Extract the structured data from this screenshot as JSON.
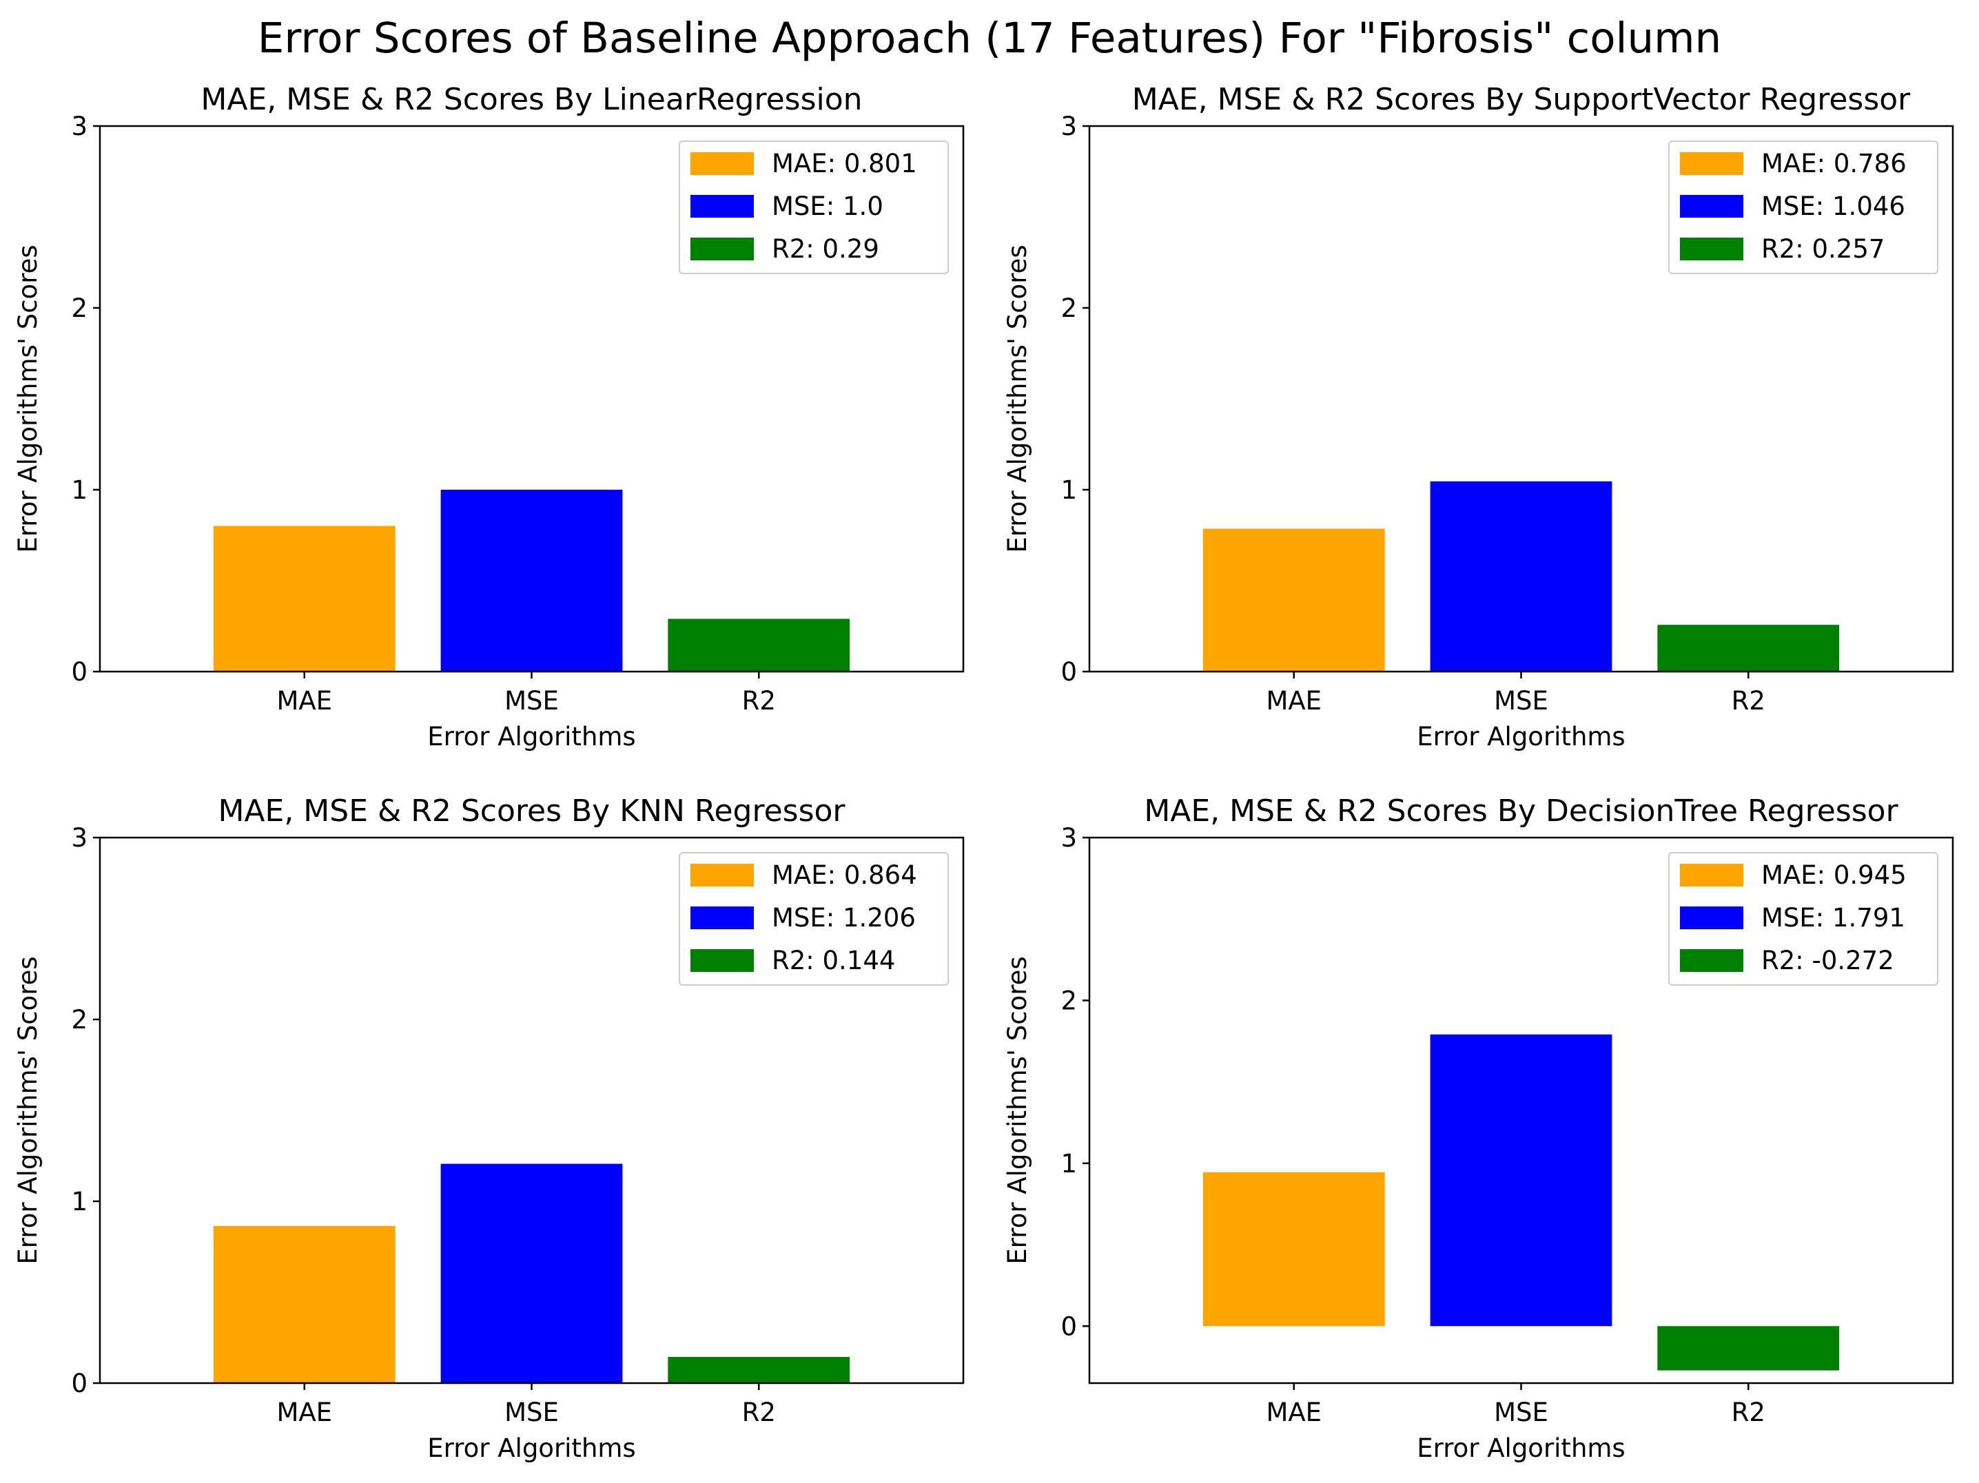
{
  "figure": {
    "suptitle": "Error Scores of Baseline Approach (17 Features) For \"Fibrosis\" column"
  },
  "colors": {
    "MAE": "#ffa500",
    "MSE": "#0000ff",
    "R2": "#008000",
    "legend_edge": "#cccccc",
    "axes_edge": "#000000"
  },
  "chart_data": [
    {
      "type": "bar",
      "title": "MAE, MSE & R2 Scores By LinearRegression",
      "xlabel": "Error Algorithms",
      "ylabel": "Error Algorithms' Scores",
      "categories": [
        "MAE",
        "MSE",
        "R2"
      ],
      "values": [
        0.801,
        1.0,
        0.29
      ],
      "ylim": [
        0,
        3
      ],
      "yticks": [
        0,
        1,
        2,
        3
      ],
      "legend": [
        "MAE: 0.801",
        "MSE: 1.0",
        "R2: 0.29"
      ],
      "legend_position": "top-right",
      "grid": false
    },
    {
      "type": "bar",
      "title": "MAE, MSE & R2 Scores By SupportVector Regressor",
      "xlabel": "Error Algorithms",
      "ylabel": "Error Algorithms' Scores",
      "categories": [
        "MAE",
        "MSE",
        "R2"
      ],
      "values": [
        0.786,
        1.046,
        0.257
      ],
      "ylim": [
        0,
        3
      ],
      "yticks": [
        0,
        1,
        2,
        3
      ],
      "legend": [
        "MAE: 0.786",
        "MSE: 1.046",
        "R2: 0.257"
      ],
      "legend_position": "top-right",
      "grid": false
    },
    {
      "type": "bar",
      "title": "MAE, MSE & R2 Scores By KNN Regressor",
      "xlabel": "Error Algorithms",
      "ylabel": "Error Algorithms' Scores",
      "categories": [
        "MAE",
        "MSE",
        "R2"
      ],
      "values": [
        0.864,
        1.206,
        0.144
      ],
      "ylim": [
        0,
        3
      ],
      "yticks": [
        0,
        1,
        2,
        3
      ],
      "legend": [
        "MAE: 0.864",
        "MSE: 1.206",
        "R2: 0.144"
      ],
      "legend_position": "top-right",
      "grid": false
    },
    {
      "type": "bar",
      "title": "MAE, MSE & R2 Scores By DecisionTree Regressor",
      "xlabel": "Error Algorithms",
      "ylabel": "Error Algorithms' Scores",
      "categories": [
        "MAE",
        "MSE",
        "R2"
      ],
      "values": [
        0.945,
        1.791,
        -0.272
      ],
      "ylim": [
        -0.35,
        3
      ],
      "yticks": [
        0,
        1,
        2,
        3
      ],
      "legend": [
        "MAE: 0.945",
        "MSE: 1.791",
        "R2: -0.272"
      ],
      "legend_position": "top-right",
      "grid": false
    }
  ]
}
